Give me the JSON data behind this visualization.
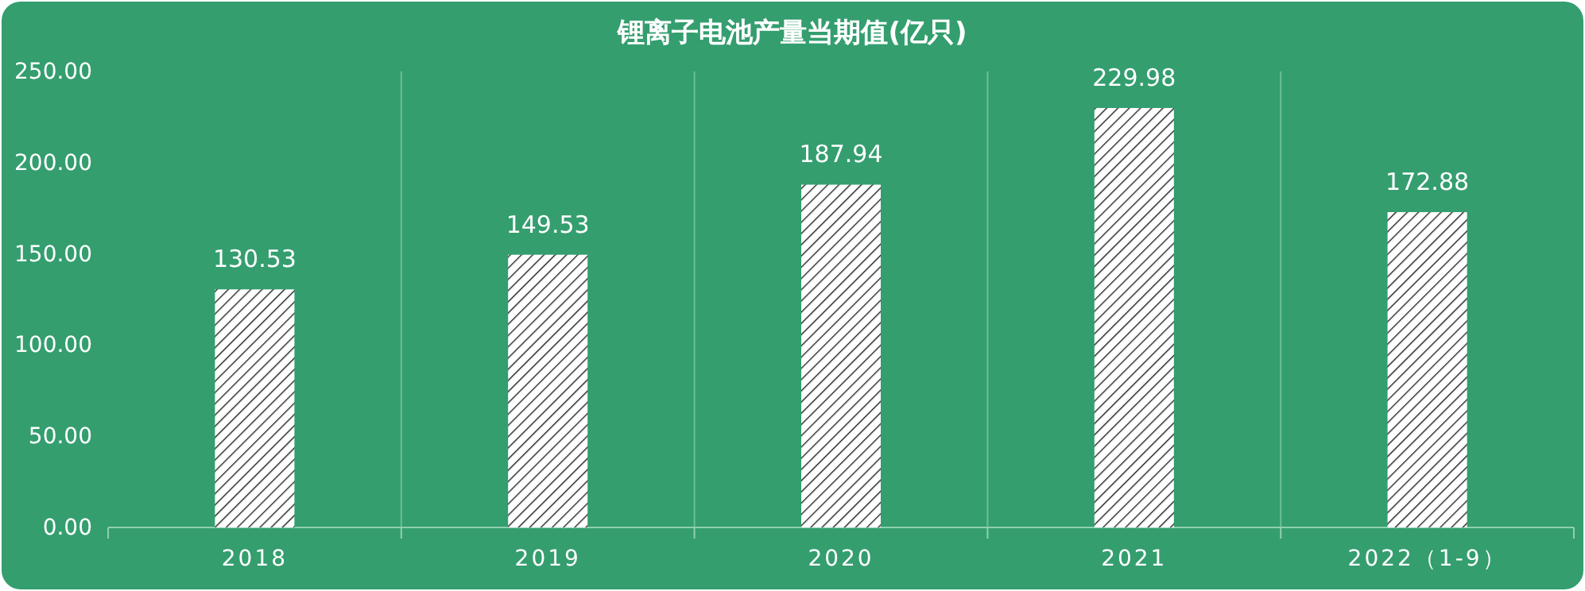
{
  "chart_data": {
    "type": "bar",
    "title": "锂离子电池产量当期值(亿只)",
    "categories": [
      "2018",
      "2019",
      "2020",
      "2021",
      "2022（1-9）"
    ],
    "values": [
      130.53,
      149.53,
      187.94,
      229.98,
      172.88
    ],
    "color": "#ffffff",
    "ylim": [
      0,
      250
    ],
    "yticks": [
      {
        "value": 0,
        "label": "0.00"
      },
      {
        "value": 50,
        "label": "50.00"
      },
      {
        "value": 100,
        "label": "100.00"
      },
      {
        "value": 150,
        "label": "150.00"
      },
      {
        "value": 200,
        "label": "200.00"
      },
      {
        "value": 250,
        "label": "250.00"
      }
    ],
    "grid": "x",
    "data_labels": true
  }
}
